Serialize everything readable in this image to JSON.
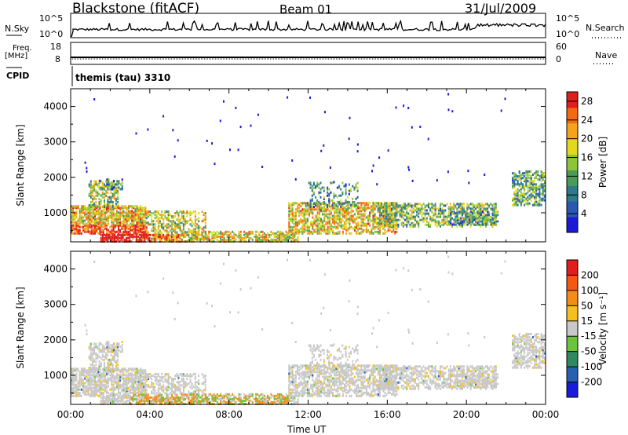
{
  "header": {
    "station": "Blackstone (fitACF)",
    "beam": "Beam 01",
    "date": "31/Jul/2009"
  },
  "top_panels": {
    "nsky_label": "N.Sky",
    "nsky_ticks": [
      "10^5",
      "10^0"
    ],
    "nsearch_label": "N.Search",
    "nsearch_ticks": [
      "10^5",
      "10^0"
    ],
    "freq_label": "Freq.",
    "freq_unit": "[MHz]",
    "freq_ticks": [
      "18",
      "8"
    ],
    "nave_label": "Nave",
    "nave_ticks": [
      "60",
      "0"
    ],
    "cpid_label": "CPID",
    "cpid_value": "themis (tau) 3310"
  },
  "chart_data": [
    {
      "type": "heatmap",
      "title": "",
      "ylabel": "Slant Range [km]",
      "xlabel": "",
      "x_ticks": [
        "00:00",
        "04:00",
        "08:00",
        "12:00",
        "16:00",
        "20:00",
        "00:00"
      ],
      "y_ticks": [
        1000,
        2000,
        3000,
        4000
      ],
      "ylim": [
        180,
        4500
      ],
      "xlim": [
        0,
        24
      ],
      "colorbar": {
        "label": "Power [dB]",
        "ticks": [
          28,
          24,
          20,
          16,
          12,
          8,
          4
        ],
        "range": [
          0,
          30
        ],
        "colors": [
          "#1a1ad8",
          "#2858b4",
          "#2e7a8a",
          "#4a9a5a",
          "#8cc43a",
          "#e2d81c",
          "#f4a41a",
          "#f26a12",
          "#e01e1e"
        ]
      }
    },
    {
      "type": "heatmap",
      "title": "",
      "ylabel": "Slant Range [km]",
      "xlabel": "Time UT",
      "x_ticks": [
        "00:00",
        "04:00",
        "08:00",
        "12:00",
        "16:00",
        "20:00",
        "00:00"
      ],
      "y_ticks": [
        1000,
        2000,
        3000,
        4000
      ],
      "ylim": [
        180,
        4500
      ],
      "xlim": [
        0,
        24
      ],
      "colorbar": {
        "label": "Velocity [m s⁻¹]",
        "ticks": [
          "200",
          "100",
          "50",
          "15",
          "-15",
          "-50",
          "-100",
          "-200"
        ],
        "colors": [
          "#1a1ad8",
          "#2860b0",
          "#2e8860",
          "#6cc43c",
          "#c8c8c8",
          "#f4c01a",
          "#f48c1a",
          "#f25a12",
          "#e01e1e"
        ]
      }
    }
  ]
}
